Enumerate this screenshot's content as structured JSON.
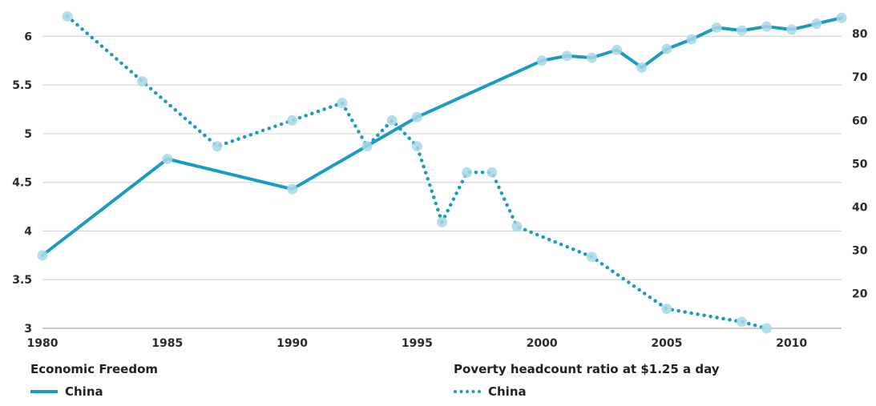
{
  "chart_data": {
    "type": "line",
    "title": "",
    "xlabel": "",
    "ylabel": "",
    "x_ticks": [
      1980,
      1985,
      1990,
      1995,
      2000,
      2005,
      2010
    ],
    "xlim": [
      1980,
      2012
    ],
    "y_left_ticks": [
      "3",
      "3.5",
      "4",
      "4.5",
      "5",
      "5.5",
      "6"
    ],
    "ylim_left": [
      3,
      6.25
    ],
    "y_right_ticks": [
      "20",
      "30",
      "40",
      "50",
      "60",
      "70",
      "80"
    ],
    "ylim_right": [
      12,
      85
    ],
    "grid": true,
    "legend_groups": [
      {
        "title": "Economic Freedom",
        "entries": [
          "China"
        ]
      },
      {
        "title": "Poverty headcount ratio at $1.25 a day",
        "entries": [
          "China"
        ]
      }
    ],
    "series": [
      {
        "axis": "left",
        "style": "solid",
        "color": "#1a9bbf",
        "x": [
          1980,
          1985,
          1990,
          1995,
          2000,
          2001,
          2002,
          2003,
          2004,
          2005,
          2006,
          2007,
          2008,
          2009,
          2010,
          2011,
          2012
        ],
        "values": [
          3.75,
          4.74,
          4.43,
          5.17,
          5.75,
          5.8,
          5.78,
          5.86,
          5.68,
          5.87,
          5.97,
          6.09,
          6.06,
          6.1,
          6.07,
          6.13,
          6.19
        ]
      },
      {
        "axis": "right",
        "style": "dotted",
        "color": "#1a9bbf",
        "x": [
          1981,
          1984,
          1987,
          1990,
          1992,
          1993,
          1994,
          1995,
          1996,
          1997,
          1998,
          1999,
          2002,
          2005,
          2008,
          2009
        ],
        "values": [
          84,
          69,
          54,
          60,
          64,
          54,
          60,
          54,
          36.5,
          48,
          48,
          35.5,
          28.5,
          16.5,
          13.5,
          12
        ]
      }
    ]
  }
}
